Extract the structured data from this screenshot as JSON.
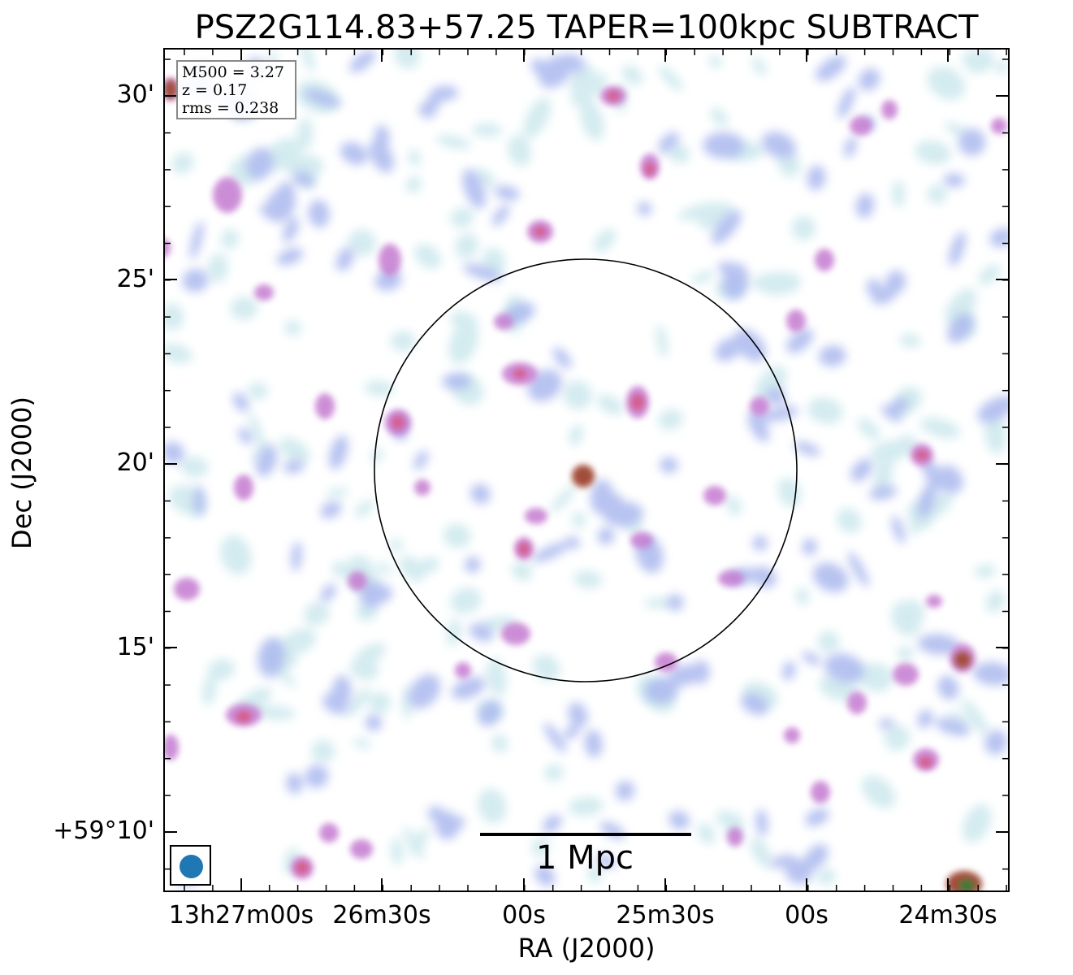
{
  "title": "PSZ2G114.83+57.25 TAPER=100kpc SUBTRACT",
  "info": {
    "m500": "M500 = 3.27",
    "z": "z = 0.17",
    "rms": "rms = 0.238"
  },
  "axes": {
    "xlabel": "RA (J2000)",
    "ylabel": "Dec (J2000)",
    "xticks": [
      "13h27m00s",
      "26m30s",
      "00s",
      "25m30s",
      "00s",
      "24m30s"
    ],
    "yticks": [
      "30'",
      "25'",
      "20'",
      "15'",
      "+59°10'"
    ]
  },
  "scalebar": {
    "label": "1 Mpc"
  },
  "colors": {
    "faint": "#cfe9ee",
    "light": "#aab8ee",
    "mid": "#c47ad0",
    "strong": "#d65c8c",
    "peak": "#a24d3a",
    "core": "#2f7b3a",
    "beam": "#1f77b4",
    "circle": "#000000"
  },
  "icons": {
    "beam": "beam-ellipse-icon"
  }
}
